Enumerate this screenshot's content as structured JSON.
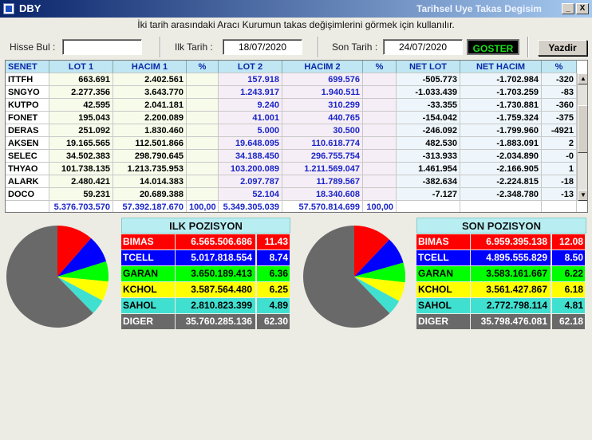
{
  "window": {
    "title": "DBY",
    "subtitle": "Tarihsel Uye Takas Degisim",
    "min_glyph": "_",
    "close_glyph": "X"
  },
  "hint": "İki tarih arasındaki  Aracı Kurumun takas değişimlerini görmek için kullanılır.",
  "toolbar": {
    "search_label": "Hisse Bul :",
    "search_value": "",
    "start_label": "Ilk Tarih :",
    "start_value": "18/07/2020",
    "end_label": "Son Tarih :",
    "end_value": "24/07/2020",
    "show_label": "GOSTER",
    "print_label": "Yazdir"
  },
  "table": {
    "headers": [
      "SENET",
      "LOT 1",
      "HACIM 1",
      "%",
      "LOT 2",
      "HACIM 2",
      "%",
      "NET LOT",
      "NET HACIM",
      "%"
    ],
    "rows": [
      [
        "ITTFH",
        "663.691",
        "2.402.561",
        "",
        "157.918",
        "699.576",
        "",
        "-505.773",
        "-1.702.984",
        "-320"
      ],
      [
        "SNGYO",
        "2.277.356",
        "3.643.770",
        "",
        "1.243.917",
        "1.940.511",
        "",
        "-1.033.439",
        "-1.703.259",
        "-83"
      ],
      [
        "KUTPO",
        "42.595",
        "2.041.181",
        "",
        "9.240",
        "310.299",
        "",
        "-33.355",
        "-1.730.881",
        "-360"
      ],
      [
        "FONET",
        "195.043",
        "2.200.089",
        "",
        "41.001",
        "440.765",
        "",
        "-154.042",
        "-1.759.324",
        "-375"
      ],
      [
        "DERAS",
        "251.092",
        "1.830.460",
        "",
        "5.000",
        "30.500",
        "",
        "-246.092",
        "-1.799.960",
        "-4921"
      ],
      [
        "AKSEN",
        "19.165.565",
        "112.501.866",
        "",
        "19.648.095",
        "110.618.774",
        "",
        "482.530",
        "-1.883.091",
        "2"
      ],
      [
        "SELEC",
        "34.502.383",
        "298.790.645",
        "",
        "34.188.450",
        "296.755.754",
        "",
        "-313.933",
        "-2.034.890",
        "-0"
      ],
      [
        "THYAO",
        "101.738.135",
        "1.213.735.953",
        "",
        "103.200.089",
        "1.211.569.047",
        "",
        "1.461.954",
        "-2.166.905",
        "1"
      ],
      [
        "ALARK",
        "2.480.421",
        "14.014.383",
        "",
        "2.097.787",
        "11.789.567",
        "",
        "-382.634",
        "-2.224.815",
        "-18"
      ],
      [
        "DOCO",
        "59.231",
        "20.689.388",
        "",
        "52.104",
        "18.340.608",
        "",
        "-7.127",
        "-2.348.780",
        "-13"
      ]
    ],
    "totals": [
      "",
      "5.376.703.570",
      "57.392.187.670",
      "100,00",
      "5.349.305.039",
      "57.570.814.699",
      "100,00",
      "",
      "",
      ""
    ]
  },
  "scrollbar": {
    "up_glyph": "▲",
    "down_glyph": "▼"
  },
  "first_position": {
    "title": "ILK POZISYON",
    "rows": [
      {
        "name": "BIMAS",
        "value": "6.565.506.686",
        "pct": "11.43",
        "color": "#ff0000",
        "text": "#ffffff",
        "share": 11.43
      },
      {
        "name": "TCELL",
        "value": "5.017.818.554",
        "pct": "8.74",
        "color": "#0000ff",
        "text": "#ffffff",
        "share": 8.74
      },
      {
        "name": "GARAN",
        "value": "3.650.189.413",
        "pct": "6.36",
        "color": "#00ff00",
        "text": "#000000",
        "share": 6.36
      },
      {
        "name": "KCHOL",
        "value": "3.587.564.480",
        "pct": "6.25",
        "color": "#ffff00",
        "text": "#000000",
        "share": 6.25
      },
      {
        "name": "SAHOL",
        "value": "2.810.823.399",
        "pct": "4.89",
        "color": "#40e0d0",
        "text": "#000000",
        "share": 4.89
      },
      {
        "name": "DIGER",
        "value": "35.760.285.136",
        "pct": "62.30",
        "color": "#696969",
        "text": "#ffffff",
        "share": 62.3
      }
    ]
  },
  "last_position": {
    "title": "SON POZISYON",
    "rows": [
      {
        "name": "BIMAS",
        "value": "6.959.395.138",
        "pct": "12.08",
        "color": "#ff0000",
        "text": "#ffffff",
        "share": 12.08
      },
      {
        "name": "TCELL",
        "value": "4.895.555.829",
        "pct": "8.50",
        "color": "#0000ff",
        "text": "#ffffff",
        "share": 8.5
      },
      {
        "name": "GARAN",
        "value": "3.583.161.667",
        "pct": "6.22",
        "color": "#00ff00",
        "text": "#000000",
        "share": 6.22
      },
      {
        "name": "KCHOL",
        "value": "3.561.427.867",
        "pct": "6.18",
        "color": "#ffff00",
        "text": "#000000",
        "share": 6.18
      },
      {
        "name": "SAHOL",
        "value": "2.772.798.114",
        "pct": "4.81",
        "color": "#40e0d0",
        "text": "#000000",
        "share": 4.81
      },
      {
        "name": "DIGER",
        "value": "35.798.476.081",
        "pct": "62.18",
        "color": "#696969",
        "text": "#ffffff",
        "share": 62.18
      }
    ]
  }
}
